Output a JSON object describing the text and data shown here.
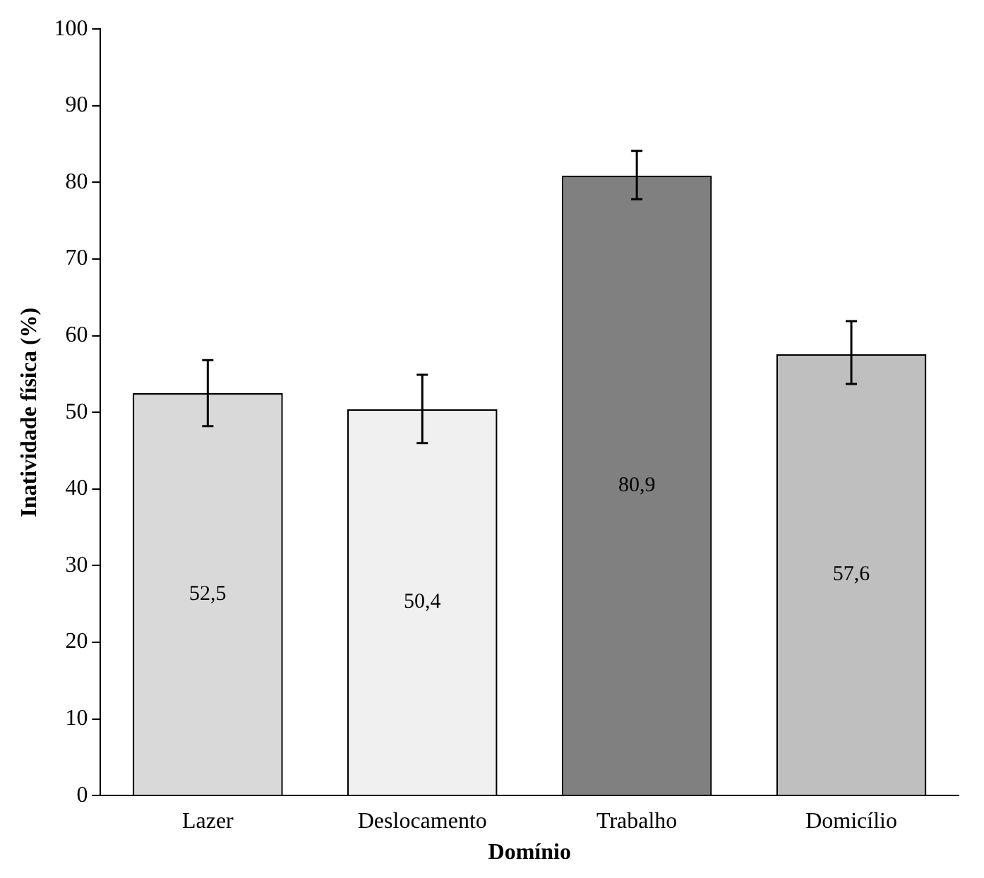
{
  "chart_data": {
    "type": "bar",
    "xlabel": "Domínio",
    "ylabel": "Inatividade física (%)",
    "categories": [
      "Lazer",
      "Deslocamento",
      "Trabalho",
      "Domicílio"
    ],
    "values": [
      52.5,
      50.4,
      80.9,
      57.6
    ],
    "value_labels": [
      "52,5",
      "50,4",
      "80,9",
      "57,6"
    ],
    "colors": [
      "#d9d9d9",
      "#f0f0f0",
      "#808080",
      "#bfbfbf"
    ],
    "errors": [
      [
        48.2,
        56.8
      ],
      [
        46.0,
        54.9
      ],
      [
        77.8,
        84.1
      ],
      [
        53.7,
        61.9
      ]
    ],
    "ylim": [
      0,
      100
    ],
    "yticks": [
      0,
      10,
      20,
      30,
      40,
      50,
      60,
      70,
      80,
      90,
      100
    ],
    "grid": false,
    "legend": false
  }
}
